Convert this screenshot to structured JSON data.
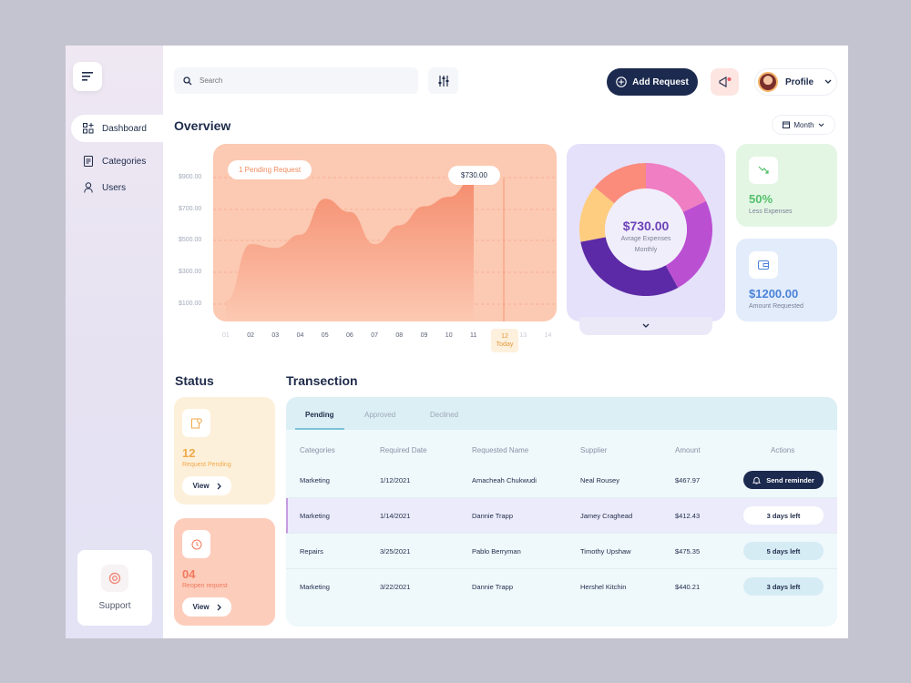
{
  "search": {
    "placeholder": "Search"
  },
  "header": {
    "add_request": "Add Request",
    "profile": "Profile"
  },
  "sidebar": {
    "items": [
      {
        "label": "Dashboard",
        "active": true
      },
      {
        "label": "Categories"
      },
      {
        "label": "Users"
      }
    ],
    "support": "Support"
  },
  "overview": {
    "title": "Overview",
    "period": "Month"
  },
  "chart_data": {
    "type": "area",
    "x": [
      "01",
      "02",
      "03",
      "04",
      "05",
      "06",
      "07",
      "08",
      "09",
      "10",
      "11",
      "12",
      "13",
      "14"
    ],
    "values": [
      180,
      480,
      460,
      530,
      720,
      650,
      480,
      580,
      680,
      730,
      830,
      null,
      null,
      null
    ],
    "ylabels": [
      "$900.00",
      "$700.00",
      "$500.00",
      "$300.00",
      "$100.00"
    ],
    "ylim": [
      0,
      1000
    ],
    "annotation": "1 Pending Request",
    "highlight_value": "$730.00",
    "today_label": "12",
    "today_text": "Today",
    "color": "#fcc9b2"
  },
  "donut": {
    "value": "$730.00",
    "subtitle_1": "Avrage Expenses",
    "subtitle_2": "Monthly",
    "segments": [
      {
        "color": "#f07ec3",
        "value": 18
      },
      {
        "color": "#bb4fd2",
        "value": 24
      },
      {
        "color": "#5c2aa6",
        "value": 30
      },
      {
        "color": "#fecd7f",
        "value": 14
      },
      {
        "color": "#fb8c7c",
        "value": 14
      }
    ]
  },
  "stats": [
    {
      "value": "50%",
      "label": "Less Expenses",
      "color": "#53c06c"
    },
    {
      "value": "$1200.00",
      "label": "Amount Requested",
      "color": "#4a82d8"
    }
  ],
  "status": {
    "title": "Status",
    "cards": [
      {
        "count": "12",
        "label": "Request Pending",
        "view": "View"
      },
      {
        "count": "04",
        "label": "Reopen request",
        "view": "View"
      }
    ]
  },
  "transactions": {
    "title": "Transection",
    "tabs": [
      "Pending",
      "Approved",
      "Declined"
    ],
    "columns": [
      "Categories",
      "Required Date",
      "Requested Name",
      "Supplier",
      "Amount",
      "Actions"
    ],
    "rows": [
      {
        "category": "Marketing",
        "date": "1/12/2021",
        "name": "Amacheah Chukwudi",
        "supplier": "Neal Rousey",
        "amount": "$467.97",
        "action": "Send reminder"
      },
      {
        "category": "Marketing",
        "date": "1/14/2021",
        "name": "Dannie Trapp",
        "supplier": "Jamey Craghead",
        "amount": "$412.43",
        "action": "3 days left"
      },
      {
        "category": "Repairs",
        "date": "3/25/2021",
        "name": "Pablo Berryman",
        "supplier": "Timothy Upshaw",
        "amount": "$475.35",
        "action": "5 days left"
      },
      {
        "category": "Marketing",
        "date": "3/22/2021",
        "name": "Dannie Trapp",
        "supplier": "Hershel Kitchin",
        "amount": "$440.21",
        "action": "3 days left"
      }
    ]
  }
}
